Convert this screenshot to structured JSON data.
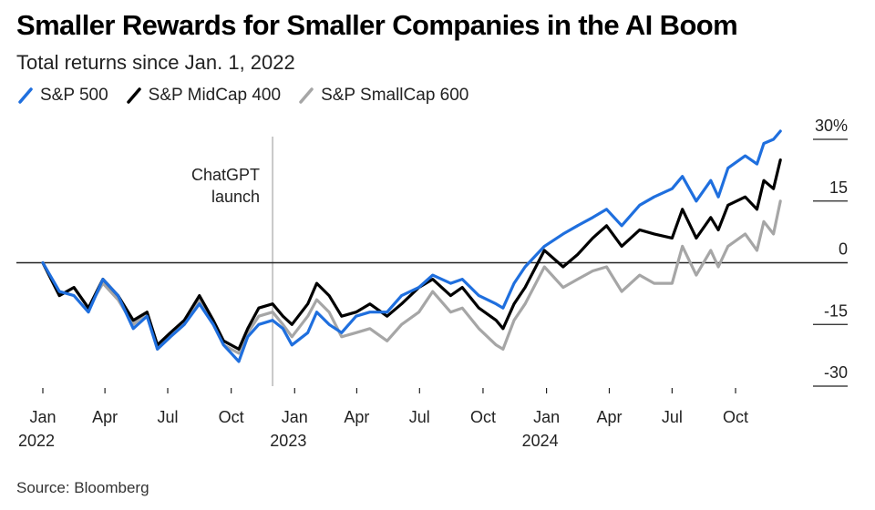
{
  "chart_data": {
    "type": "line",
    "title": "Smaller Rewards for Smaller Companies in the AI Boom",
    "subtitle": "Total returns since Jan. 1, 2022",
    "source": "Source: Bloomberg",
    "ylabel": "",
    "xlabel": "",
    "ylim": [
      -30,
      30
    ],
    "xlim": [
      "2022-01-01",
      "2024-12-10"
    ],
    "yticks": [
      {
        "value": 30,
        "label": "30%"
      },
      {
        "value": 15,
        "label": "15"
      },
      {
        "value": 0,
        "label": "0"
      },
      {
        "value": -15,
        "label": "-15"
      },
      {
        "value": -30,
        "label": "-30"
      }
    ],
    "xticks": [
      {
        "date": "2022-01-01",
        "label": "Jan",
        "year": "2022"
      },
      {
        "date": "2022-04-01",
        "label": "Apr",
        "year": ""
      },
      {
        "date": "2022-07-01",
        "label": "Jul",
        "year": ""
      },
      {
        "date": "2022-10-01",
        "label": "Oct",
        "year": ""
      },
      {
        "date": "2023-01-01",
        "label": "Jan",
        "year": "2023"
      },
      {
        "date": "2023-04-01",
        "label": "Apr",
        "year": ""
      },
      {
        "date": "2023-07-01",
        "label": "Jul",
        "year": ""
      },
      {
        "date": "2023-10-01",
        "label": "Oct",
        "year": ""
      },
      {
        "date": "2024-01-01",
        "label": "Jan",
        "year": "2024"
      },
      {
        "date": "2024-04-01",
        "label": "Apr",
        "year": ""
      },
      {
        "date": "2024-07-01",
        "label": "Jul",
        "year": ""
      },
      {
        "date": "2024-10-01",
        "label": "Oct",
        "year": ""
      }
    ],
    "annotation": {
      "date": "2022-11-30",
      "text_line1": "ChatGPT",
      "text_line2": "launch"
    },
    "grid": false,
    "legend_position": "top-left",
    "series": [
      {
        "name": "S&P 500",
        "color": "#1f6fde",
        "points": [
          [
            "2022-01-01",
            0
          ],
          [
            "2022-01-25",
            -7
          ],
          [
            "2022-02-15",
            -8
          ],
          [
            "2022-03-08",
            -12
          ],
          [
            "2022-03-29",
            -4
          ],
          [
            "2022-04-20",
            -8
          ],
          [
            "2022-05-12",
            -16
          ],
          [
            "2022-06-01",
            -13
          ],
          [
            "2022-06-16",
            -21
          ],
          [
            "2022-07-05",
            -18
          ],
          [
            "2022-07-25",
            -15
          ],
          [
            "2022-08-16",
            -10
          ],
          [
            "2022-09-05",
            -15
          ],
          [
            "2022-09-20",
            -20
          ],
          [
            "2022-10-12",
            -24
          ],
          [
            "2022-10-25",
            -18
          ],
          [
            "2022-11-10",
            -15
          ],
          [
            "2022-11-30",
            -14
          ],
          [
            "2022-12-15",
            -16
          ],
          [
            "2022-12-28",
            -20
          ],
          [
            "2023-01-20",
            -17
          ],
          [
            "2023-02-02",
            -12
          ],
          [
            "2023-02-20",
            -15
          ],
          [
            "2023-03-10",
            -17
          ],
          [
            "2023-03-31",
            -13
          ],
          [
            "2023-04-20",
            -12
          ],
          [
            "2023-05-15",
            -12
          ],
          [
            "2023-06-05",
            -8
          ],
          [
            "2023-06-30",
            -6
          ],
          [
            "2023-07-20",
            -3
          ],
          [
            "2023-08-15",
            -5
          ],
          [
            "2023-09-01",
            -4
          ],
          [
            "2023-09-25",
            -8
          ],
          [
            "2023-10-20",
            -10
          ],
          [
            "2023-10-30",
            -11
          ],
          [
            "2023-11-15",
            -5
          ],
          [
            "2023-12-01",
            -1
          ],
          [
            "2023-12-29",
            4
          ],
          [
            "2024-01-25",
            7
          ],
          [
            "2024-02-15",
            9
          ],
          [
            "2024-03-08",
            11
          ],
          [
            "2024-03-28",
            13
          ],
          [
            "2024-04-19",
            9
          ],
          [
            "2024-05-15",
            14
          ],
          [
            "2024-06-05",
            16
          ],
          [
            "2024-07-01",
            18
          ],
          [
            "2024-07-16",
            21
          ],
          [
            "2024-08-05",
            15
          ],
          [
            "2024-08-26",
            20
          ],
          [
            "2024-09-06",
            16
          ],
          [
            "2024-09-20",
            23
          ],
          [
            "2024-10-15",
            26
          ],
          [
            "2024-11-01",
            24
          ],
          [
            "2024-11-11",
            29
          ],
          [
            "2024-11-25",
            30
          ],
          [
            "2024-12-05",
            32
          ]
        ]
      },
      {
        "name": "S&P MidCap 400",
        "color": "#000000",
        "points": [
          [
            "2022-01-01",
            0
          ],
          [
            "2022-01-25",
            -8
          ],
          [
            "2022-02-15",
            -6
          ],
          [
            "2022-03-08",
            -11
          ],
          [
            "2022-03-29",
            -4
          ],
          [
            "2022-04-20",
            -8
          ],
          [
            "2022-05-12",
            -14
          ],
          [
            "2022-06-01",
            -12
          ],
          [
            "2022-06-16",
            -20
          ],
          [
            "2022-07-05",
            -17
          ],
          [
            "2022-07-25",
            -14
          ],
          [
            "2022-08-16",
            -8
          ],
          [
            "2022-09-05",
            -14
          ],
          [
            "2022-09-20",
            -19
          ],
          [
            "2022-10-12",
            -21
          ],
          [
            "2022-10-25",
            -16
          ],
          [
            "2022-11-10",
            -11
          ],
          [
            "2022-11-30",
            -10
          ],
          [
            "2022-12-15",
            -13
          ],
          [
            "2022-12-28",
            -15
          ],
          [
            "2023-01-20",
            -10
          ],
          [
            "2023-02-02",
            -5
          ],
          [
            "2023-02-20",
            -8
          ],
          [
            "2023-03-10",
            -13
          ],
          [
            "2023-03-31",
            -12
          ],
          [
            "2023-04-20",
            -10
          ],
          [
            "2023-05-15",
            -13
          ],
          [
            "2023-06-05",
            -10
          ],
          [
            "2023-06-30",
            -6
          ],
          [
            "2023-07-20",
            -4
          ],
          [
            "2023-08-15",
            -8
          ],
          [
            "2023-09-01",
            -6
          ],
          [
            "2023-09-25",
            -11
          ],
          [
            "2023-10-20",
            -14
          ],
          [
            "2023-10-30",
            -16
          ],
          [
            "2023-11-15",
            -10
          ],
          [
            "2023-12-01",
            -6
          ],
          [
            "2023-12-29",
            3
          ],
          [
            "2024-01-25",
            -1
          ],
          [
            "2024-02-15",
            2
          ],
          [
            "2024-03-08",
            6
          ],
          [
            "2024-03-28",
            9
          ],
          [
            "2024-04-19",
            4
          ],
          [
            "2024-05-15",
            8
          ],
          [
            "2024-06-05",
            7
          ],
          [
            "2024-07-01",
            6
          ],
          [
            "2024-07-16",
            13
          ],
          [
            "2024-08-05",
            6
          ],
          [
            "2024-08-26",
            11
          ],
          [
            "2024-09-06",
            8
          ],
          [
            "2024-09-20",
            14
          ],
          [
            "2024-10-15",
            16
          ],
          [
            "2024-11-01",
            13
          ],
          [
            "2024-11-11",
            20
          ],
          [
            "2024-11-25",
            18
          ],
          [
            "2024-12-05",
            25
          ]
        ]
      },
      {
        "name": "S&P SmallCap 600",
        "color": "#a6a6a6",
        "points": [
          [
            "2022-01-01",
            0
          ],
          [
            "2022-01-25",
            -8
          ],
          [
            "2022-02-15",
            -6
          ],
          [
            "2022-03-08",
            -11
          ],
          [
            "2022-03-29",
            -5
          ],
          [
            "2022-04-20",
            -9
          ],
          [
            "2022-05-12",
            -15
          ],
          [
            "2022-06-01",
            -12
          ],
          [
            "2022-06-16",
            -21
          ],
          [
            "2022-07-05",
            -18
          ],
          [
            "2022-07-25",
            -15
          ],
          [
            "2022-08-16",
            -9
          ],
          [
            "2022-09-05",
            -15
          ],
          [
            "2022-09-20",
            -20
          ],
          [
            "2022-10-12",
            -22
          ],
          [
            "2022-10-25",
            -17
          ],
          [
            "2022-11-10",
            -13
          ],
          [
            "2022-11-30",
            -12
          ],
          [
            "2022-12-15",
            -15
          ],
          [
            "2022-12-28",
            -18
          ],
          [
            "2023-01-20",
            -13
          ],
          [
            "2023-02-02",
            -9
          ],
          [
            "2023-02-20",
            -12
          ],
          [
            "2023-03-10",
            -18
          ],
          [
            "2023-03-31",
            -17
          ],
          [
            "2023-04-20",
            -16
          ],
          [
            "2023-05-15",
            -19
          ],
          [
            "2023-06-05",
            -15
          ],
          [
            "2023-06-30",
            -12
          ],
          [
            "2023-07-20",
            -7
          ],
          [
            "2023-08-15",
            -12
          ],
          [
            "2023-09-01",
            -11
          ],
          [
            "2023-09-25",
            -16
          ],
          [
            "2023-10-20",
            -20
          ],
          [
            "2023-10-30",
            -21
          ],
          [
            "2023-11-15",
            -14
          ],
          [
            "2023-12-01",
            -10
          ],
          [
            "2023-12-29",
            -1
          ],
          [
            "2024-01-25",
            -6
          ],
          [
            "2024-02-15",
            -4
          ],
          [
            "2024-03-08",
            -2
          ],
          [
            "2024-03-28",
            -1
          ],
          [
            "2024-04-19",
            -7
          ],
          [
            "2024-05-15",
            -3
          ],
          [
            "2024-06-05",
            -5
          ],
          [
            "2024-07-01",
            -5
          ],
          [
            "2024-07-16",
            4
          ],
          [
            "2024-08-05",
            -3
          ],
          [
            "2024-08-26",
            3
          ],
          [
            "2024-09-06",
            -1
          ],
          [
            "2024-09-20",
            4
          ],
          [
            "2024-10-15",
            7
          ],
          [
            "2024-11-01",
            3
          ],
          [
            "2024-11-11",
            10
          ],
          [
            "2024-11-25",
            7
          ],
          [
            "2024-12-05",
            15
          ]
        ]
      }
    ]
  }
}
